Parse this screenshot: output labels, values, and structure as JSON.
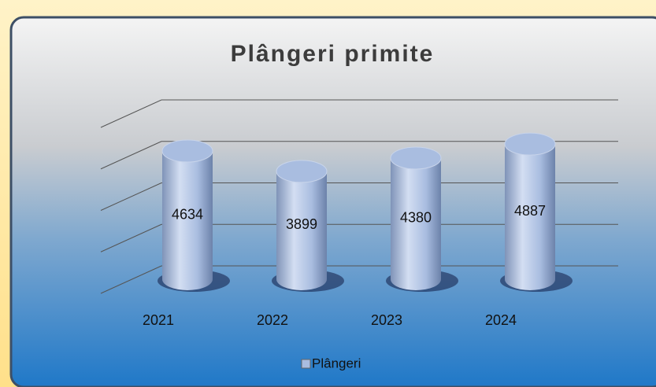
{
  "chart_data": {
    "type": "bar",
    "title": "Plângeri primite",
    "categories": [
      "2021",
      "2022",
      "2023",
      "2024"
    ],
    "series": [
      {
        "name": "Plângeri",
        "color": "#a9bde0",
        "values": [
          4634,
          3899,
          4380,
          4887
        ]
      }
    ],
    "ylim": [
      0,
      6000
    ],
    "yticks": [
      0,
      1500,
      3000,
      4500,
      6000
    ],
    "grid": true,
    "legend": "bottom"
  }
}
